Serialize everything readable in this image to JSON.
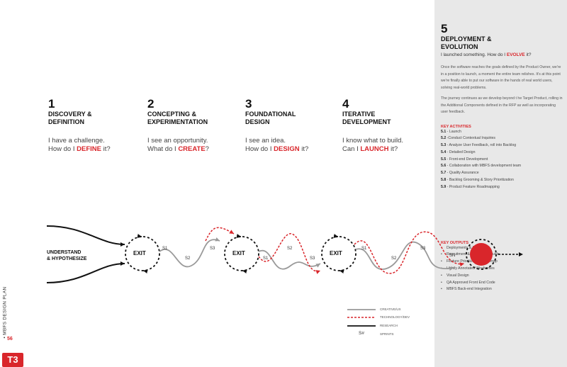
{
  "phases": [
    {
      "num": "1",
      "title1": "DISCOVERY &",
      "title2": "DEFINITION",
      "line1": "I have a challenge.",
      "line2_pre": "How do I ",
      "line2_hl": "DEFINE",
      "line2_post": " it?"
    },
    {
      "num": "2",
      "title1": "CONCEPTING &",
      "title2": "EXPERIMENTATION",
      "line1": "I see an opportunity.",
      "line2_pre": "What do I ",
      "line2_hl": "CREATE",
      "line2_post": "?"
    },
    {
      "num": "3",
      "title1": "FOUNDATIONAL",
      "title2": "DESIGN",
      "line1": "I see an idea.",
      "line2_pre": "How do I ",
      "line2_hl": "DESIGN",
      "line2_post": " it?"
    },
    {
      "num": "4",
      "title1": "ITERATIVE",
      "title2": "DEVELOPMENT",
      "line1": "I know what to build.",
      "line2_pre": "Can I ",
      "line2_hl": "LAUNCH",
      "line2_post": " it?"
    }
  ],
  "phase5": {
    "num": "5",
    "title1": "DEPLOYMENT &",
    "title2": "EVOLUTION",
    "q_pre": "I launched something. How do I ",
    "q_hl": "EVOLVE",
    "q_post": " it?",
    "para1": "Once the software reaches the goals defined by the Product Owner, we're in a position to launch, a moment the entire team relishes. It's at this point we're finally able to put our software in the hands of real world users, solving real-world problems.",
    "para2": "The journey continues as we develop beyond t he Target Product, rolling in the Additional Components defined in the RFP as well as incorporating user feedback.",
    "activities_title": "KEY ACTIVITIES",
    "activities": [
      {
        "code": "5.1",
        "text": " - Launch"
      },
      {
        "code": "5.2",
        "text": " -Conduct Contextual Inquiries"
      },
      {
        "code": "5.3",
        "text": " - Analyze User Feedback, roll into Backlog"
      },
      {
        "code": "5.4",
        "text": " - Detailed Design"
      },
      {
        "code": "5.5",
        "text": " - Front-end Development"
      },
      {
        "code": "5.6",
        "text": " - Collaboration with MBFS development team"
      },
      {
        "code": "5.7",
        "text": " - Quality Assurance"
      },
      {
        "code": "5.8",
        "text": " - Backlog Grooming & Story Prioritization"
      },
      {
        "code": "5.9",
        "text": " - Product Feature Roadmapping"
      }
    ],
    "outputs_title": "KEY OUTPUTS",
    "outputs": [
      "Deployments & Live QA",
      "Recruitment & Discussion Guide",
      "Feature Prioritization Roadmap",
      "Lightly Annotated Wireframes",
      "Visual Design",
      "QA Approved Front End Code",
      "MBFS Back-end Integration"
    ]
  },
  "diagram": {
    "start_label1": "UNDERSTAND",
    "start_label2": "& HYPOTHESIZE",
    "exit_label": "EXIT",
    "sprint_labels": [
      "S1",
      "S2",
      "S3",
      "S1",
      "S2",
      "S3",
      "S1",
      "S2",
      "S3",
      "SN"
    ],
    "colors": {
      "creative": "#9a9a9a",
      "tech": "#d9262b",
      "research": "#222222"
    }
  },
  "legend": [
    {
      "label": "CREATIVE/UX"
    },
    {
      "label": "TECHNOLOGY/DEV"
    },
    {
      "label": "RESEARCH"
    },
    {
      "symbol": "S#",
      "label": "SPRINTS"
    }
  ],
  "footer": {
    "doc_title": "MBFS DESIGN PLAN",
    "page": "56",
    "logo": "T3"
  }
}
